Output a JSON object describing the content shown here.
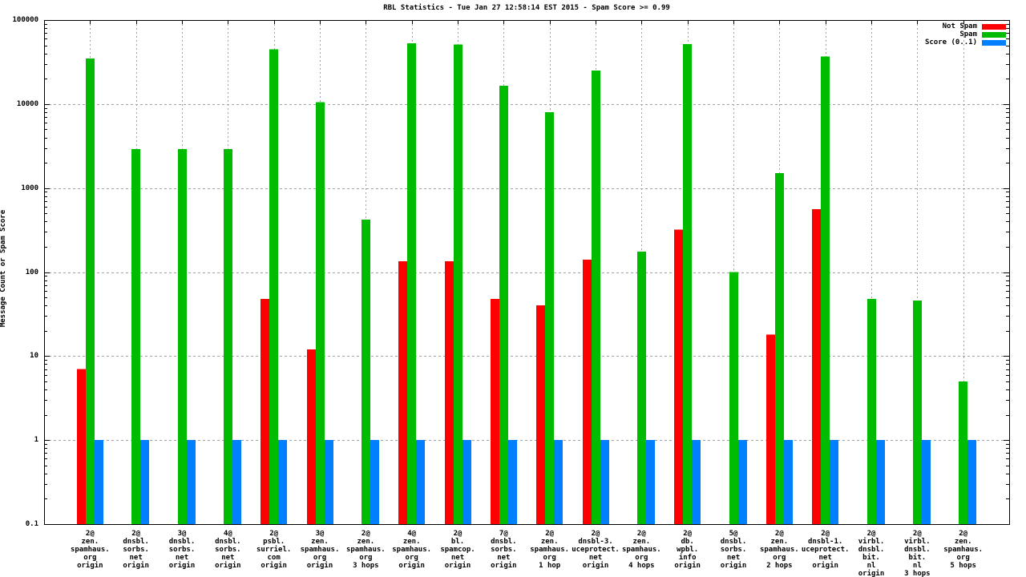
{
  "chart_data": {
    "type": "bar",
    "title": "RBL Statistics - Tue Jan 27 12:58:14 EST 2015 - Spam Score >= 0.99",
    "ylabel": "Message Count or Spam Score",
    "xlabel": "",
    "yscale": "log",
    "ylim": [
      0.1,
      100000
    ],
    "yticks": [
      0.1,
      1,
      10,
      100,
      1000,
      10000,
      100000
    ],
    "ytick_labels": [
      "0.1",
      "1",
      "10",
      "100",
      "1000",
      "10000",
      "100000"
    ],
    "grid": true,
    "legend_position": "top-right",
    "colors": {
      "not_spam": "#ff0000",
      "spam": "#00bc00",
      "score": "#0080ff",
      "grid": "#a0a0a0",
      "border": "#000000",
      "background": "#ffffff"
    },
    "categories": [
      [
        "2@",
        "zen.",
        "spamhaus.",
        "org",
        "origin"
      ],
      [
        "2@",
        "dnsbl.",
        "sorbs.",
        "net",
        "origin"
      ],
      [
        "3@",
        "dnsbl.",
        "sorbs.",
        "net",
        "origin"
      ],
      [
        "4@",
        "dnsbl.",
        "sorbs.",
        "net",
        "origin"
      ],
      [
        "2@",
        "psbl.",
        "surriel.",
        "com",
        "origin"
      ],
      [
        "3@",
        "zen.",
        "spamhaus.",
        "org",
        "origin"
      ],
      [
        "2@",
        "zen.",
        "spamhaus.",
        "org",
        "3 hops"
      ],
      [
        "4@",
        "zen.",
        "spamhaus.",
        "org",
        "origin"
      ],
      [
        "2@",
        "bl.",
        "spamcop.",
        "net",
        "origin"
      ],
      [
        "7@",
        "dnsbl.",
        "sorbs.",
        "net",
        "origin"
      ],
      [
        "2@",
        "zen.",
        "spamhaus.",
        "org",
        "1 hop"
      ],
      [
        "2@",
        "dnsbl-3.",
        "uceprotect.",
        "net",
        "origin"
      ],
      [
        "2@",
        "zen.",
        "spamhaus.",
        "org",
        "4 hops"
      ],
      [
        "2@",
        "db.",
        "wpbl.",
        "info",
        "origin"
      ],
      [
        "5@",
        "dnsbl.",
        "sorbs.",
        "net",
        "origin"
      ],
      [
        "2@",
        "zen.",
        "spamhaus.",
        "org",
        "2 hops"
      ],
      [
        "2@",
        "dnsbl-1.",
        "uceprotect.",
        "net",
        "origin"
      ],
      [
        "2@",
        "virbl.",
        "dnsbl.",
        "bit.",
        "nl",
        "origin"
      ],
      [
        "2@",
        "virbl.",
        "dnsbl.",
        "bit.",
        "nl",
        "3 hops"
      ],
      [
        "2@",
        "zen.",
        "spamhaus.",
        "org",
        "5 hops"
      ]
    ],
    "series": [
      {
        "name": "Not Spam",
        "color_key": "not_spam",
        "values": [
          7,
          0,
          0,
          0,
          48,
          12,
          0,
          135,
          135,
          48,
          40,
          140,
          0,
          320,
          0,
          18,
          560,
          0,
          0,
          0
        ]
      },
      {
        "name": "Spam",
        "color_key": "spam",
        "values": [
          35000,
          2900,
          2900,
          2900,
          45000,
          10500,
          420,
          53000,
          51000,
          16500,
          8000,
          25000,
          175,
          52000,
          100,
          1500,
          37000,
          48,
          46,
          5
        ]
      },
      {
        "name": "Score (0..1)",
        "color_key": "score",
        "values": [
          1,
          1,
          1,
          1,
          1,
          1,
          1,
          1,
          1,
          1,
          1,
          1,
          1,
          1,
          1,
          1,
          1,
          1,
          1,
          1
        ]
      }
    ]
  }
}
